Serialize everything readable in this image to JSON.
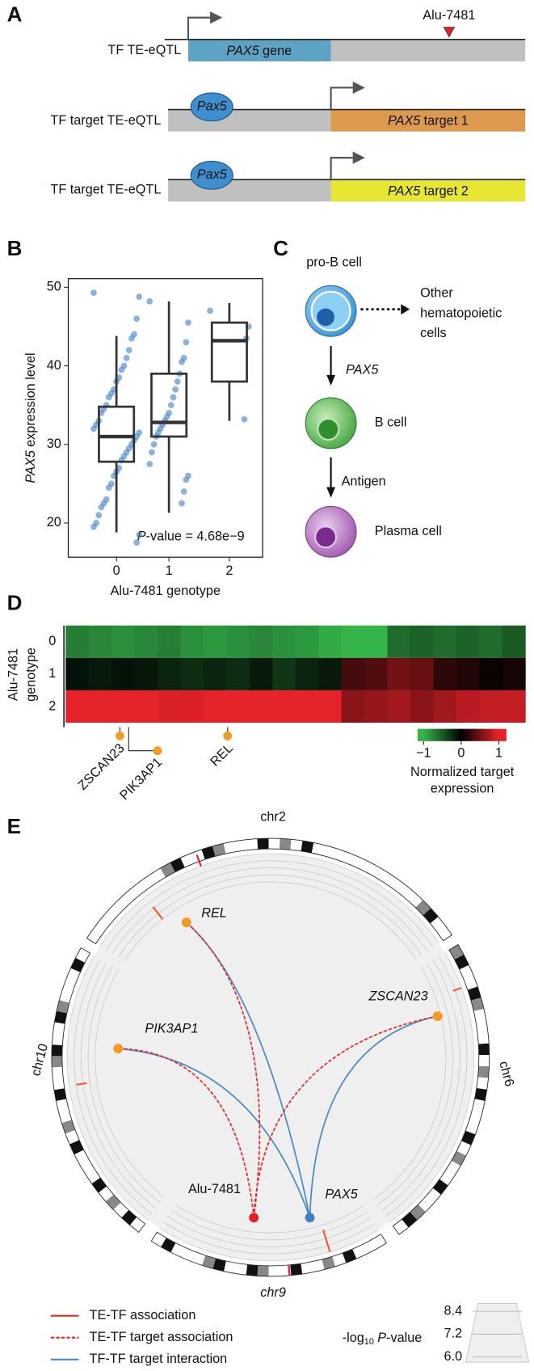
{
  "panel_labels": [
    "A",
    "B",
    "C",
    "D",
    "E"
  ],
  "panel_a": {
    "marker": "Alu-7481",
    "rows": [
      {
        "label": "TF TE-eQTL",
        "gene_italic": "PAX5",
        "gene_text": "gene"
      },
      {
        "label": "TF target TE-eQTL",
        "tf": "Pax5",
        "gene_italic": "PAX5",
        "gene_text": "target 1"
      },
      {
        "label": "TF target TE-eQTL",
        "tf": "Pax5",
        "gene_italic": "PAX5",
        "gene_text": "target 2"
      }
    ]
  },
  "chart_data": {
    "type": "box",
    "y_label_italic": "PAX5",
    "y_label": "expression level",
    "x_label": "Alu-7481 genotype",
    "annotation_italic": "P",
    "annotation": "-value = 4.68e−9",
    "categories": [
      "0",
      "1",
      "2"
    ],
    "ylim": [
      15.65,
      51.1
    ],
    "yticks": [
      20,
      30,
      40,
      50
    ],
    "box_color": "#333333",
    "point_color": "#3f7fc4",
    "boxes": [
      {
        "low": 18.8,
        "q1": 27.8,
        "median": 31,
        "q3": 34.8,
        "high": 43.8
      },
      {
        "low": 21.3,
        "q1": 31,
        "median": 32.8,
        "q3": 39,
        "high": 48.2
      },
      {
        "low": 33,
        "q1": 38,
        "median": 43.2,
        "q3": 45.5,
        "high": 48
      }
    ],
    "points": [
      [
        49.3,
        48.8,
        46,
        44,
        43.5,
        42,
        41,
        40,
        39.5,
        38.5,
        38,
        37,
        36.5,
        36,
        35,
        34.5,
        34,
        33,
        32.5,
        32,
        31.5,
        31,
        30.5,
        30,
        29.5,
        29,
        28.5,
        28,
        27,
        26.5,
        26,
        25,
        24.5,
        23,
        22.5,
        22,
        21,
        20,
        19.5,
        18.5,
        17.5
      ],
      [
        48.2,
        45.5,
        43,
        41,
        40.5,
        39,
        38,
        37,
        36,
        35,
        34,
        33.5,
        33,
        32.5,
        32,
        31.5,
        31,
        30,
        29,
        27.5,
        26,
        25.5,
        24,
        22.5
      ],
      [
        47,
        45,
        43.5,
        33.2
      ]
    ]
  },
  "panel_c": {
    "progenitor": "pro-B cell",
    "other": [
      "Other",
      "hematopoietic",
      "cells"
    ],
    "step1": "PAX5",
    "b_cell": "B cell",
    "step2": "Antigen",
    "plasma": "Plasma cell"
  },
  "panel_d": {
    "y_title": [
      "Alu-7481",
      "genotype"
    ],
    "rows": [
      "0",
      "1",
      "2"
    ],
    "values": [
      [
        -0.7,
        -0.75,
        -0.8,
        -0.75,
        -0.7,
        -0.8,
        -0.85,
        -0.8,
        -0.75,
        -0.8,
        -0.85,
        -0.95,
        -1.0,
        -1.05,
        -0.6,
        -0.55,
        -0.6,
        -0.55,
        -0.6,
        -0.5
      ],
      [
        -0.1,
        -0.15,
        -0.1,
        -0.12,
        -0.2,
        -0.25,
        -0.2,
        -0.25,
        -0.15,
        -0.3,
        -0.2,
        -0.15,
        0.3,
        0.35,
        0.5,
        0.45,
        0.2,
        0.15,
        0.05,
        0.1
      ],
      [
        1,
        1,
        1,
        1,
        0.95,
        0.95,
        1,
        1,
        1,
        1,
        1,
        1,
        0.6,
        0.65,
        0.7,
        0.6,
        0.7,
        0.8,
        0.85,
        0.85
      ]
    ],
    "genes": [
      "ZSCAN23",
      "PIK3AP1",
      "REL"
    ],
    "colorbar": {
      "title": [
        "Normalized target",
        "expression"
      ],
      "clim": [
        -1.16,
        1.19
      ],
      "ticks": [
        {
          "value": -1,
          "label": "−1"
        },
        0,
        1
      ],
      "colors": [
        "#35b44a",
        "#000000",
        "#e5232a"
      ]
    }
  },
  "panel_e": {
    "chromosomes": [
      "chr2",
      "chr6",
      "chr9",
      "chr10"
    ],
    "genes": [
      "REL",
      "ZSCAN23",
      "PIK3AP1"
    ],
    "te": "Alu-7481",
    "tf": "PAX5",
    "legend": [
      "TE-TF association",
      "TE-TF target association",
      "TF-TF target interaction"
    ],
    "scale": {
      "title_prefix": "-log",
      "title_sub": "10",
      "title_italic": "P",
      "title_suffix": "-value",
      "ticks": [
        {
          "value": 6,
          "label": "6.0"
        },
        {
          "value": 7.2,
          "label": "7.2"
        },
        {
          "value": 8.4,
          "label": "8.4"
        }
      ]
    }
  }
}
